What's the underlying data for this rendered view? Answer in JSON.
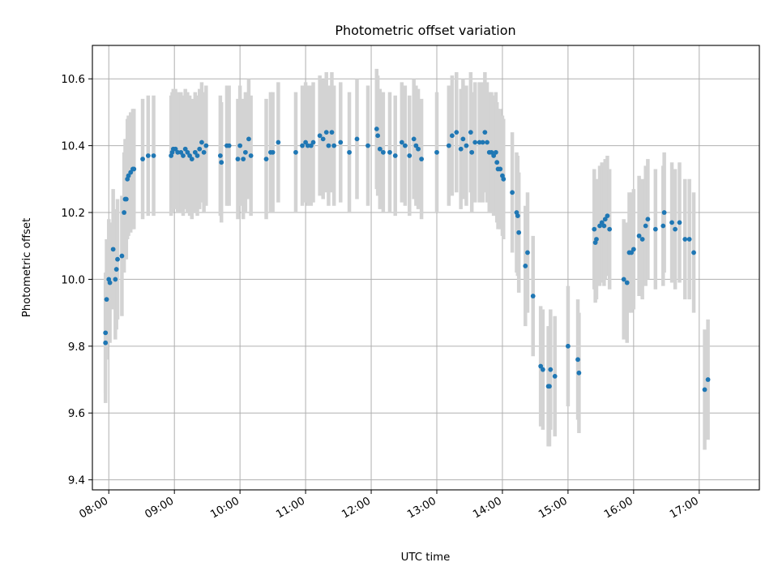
{
  "chart_data": {
    "type": "scatter",
    "title": "Photometric offset variation",
    "xlabel": "UTC time",
    "ylabel": "Photometric offset",
    "xlim": [
      "07:45",
      "17:55"
    ],
    "ylim": [
      9.37,
      10.7
    ],
    "xticks": [
      "08:00",
      "09:00",
      "10:00",
      "11:00",
      "12:00",
      "13:00",
      "14:00",
      "15:00",
      "16:00",
      "17:00"
    ],
    "yticks": [
      "9.4",
      "9.6",
      "9.8",
      "10.0",
      "10.2",
      "10.4",
      "10.6"
    ],
    "grid": true,
    "colors": {
      "point": "#1f77b4",
      "errorbar": "#d3d3d3",
      "grid": "#b0b0b0"
    },
    "series": [
      {
        "marker": "dot",
        "error_bar_half_width": 0.18,
        "points": [
          [
            "07:57",
            9.81
          ],
          [
            "07:57",
            9.84
          ],
          [
            "07:58",
            9.94
          ],
          [
            "08:00",
            10.0
          ],
          [
            "08:01",
            9.99
          ],
          [
            "08:04",
            10.09
          ],
          [
            "08:06",
            10.0
          ],
          [
            "08:07",
            10.03
          ],
          [
            "08:08",
            10.06
          ],
          [
            "08:12",
            10.07
          ],
          [
            "08:14",
            10.2
          ],
          [
            "08:15",
            10.24
          ],
          [
            "08:16",
            10.24
          ],
          [
            "08:17",
            10.3
          ],
          [
            "08:18",
            10.31
          ],
          [
            "08:20",
            10.32
          ],
          [
            "08:22",
            10.33
          ],
          [
            "08:23",
            10.33
          ],
          [
            "08:31",
            10.36
          ],
          [
            "08:36",
            10.37
          ],
          [
            "08:41",
            10.37
          ],
          [
            "08:57",
            10.37
          ],
          [
            "08:58",
            10.38
          ],
          [
            "08:59",
            10.39
          ],
          [
            "09:01",
            10.39
          ],
          [
            "09:03",
            10.38
          ],
          [
            "09:06",
            10.38
          ],
          [
            "09:08",
            10.37
          ],
          [
            "09:10",
            10.39
          ],
          [
            "09:12",
            10.38
          ],
          [
            "09:14",
            10.37
          ],
          [
            "09:16",
            10.36
          ],
          [
            "09:19",
            10.38
          ],
          [
            "09:21",
            10.37
          ],
          [
            "09:23",
            10.39
          ],
          [
            "09:25",
            10.41
          ],
          [
            "09:27",
            10.38
          ],
          [
            "09:29",
            10.4
          ],
          [
            "09:42",
            10.37
          ],
          [
            "09:43",
            10.35
          ],
          [
            "09:48",
            10.4
          ],
          [
            "09:50",
            10.4
          ],
          [
            "09:58",
            10.36
          ],
          [
            "10:00",
            10.4
          ],
          [
            "10:03",
            10.36
          ],
          [
            "10:05",
            10.38
          ],
          [
            "10:08",
            10.42
          ],
          [
            "10:10",
            10.37
          ],
          [
            "10:24",
            10.36
          ],
          [
            "10:28",
            10.38
          ],
          [
            "10:30",
            10.38
          ],
          [
            "10:35",
            10.41
          ],
          [
            "10:51",
            10.38
          ],
          [
            "10:57",
            10.4
          ],
          [
            "11:00",
            10.41
          ],
          [
            "11:02",
            10.4
          ],
          [
            "11:05",
            10.4
          ],
          [
            "11:07",
            10.41
          ],
          [
            "11:13",
            10.43
          ],
          [
            "11:16",
            10.42
          ],
          [
            "11:19",
            10.44
          ],
          [
            "11:21",
            10.4
          ],
          [
            "11:24",
            10.44
          ],
          [
            "11:26",
            10.4
          ],
          [
            "11:32",
            10.41
          ],
          [
            "11:40",
            10.38
          ],
          [
            "11:47",
            10.42
          ],
          [
            "11:57",
            10.4
          ],
          [
            "12:05",
            10.45
          ],
          [
            "12:06",
            10.43
          ],
          [
            "12:08",
            10.39
          ],
          [
            "12:11",
            10.38
          ],
          [
            "12:17",
            10.38
          ],
          [
            "12:22",
            10.37
          ],
          [
            "12:28",
            10.41
          ],
          [
            "12:31",
            10.4
          ],
          [
            "12:35",
            10.37
          ],
          [
            "12:39",
            10.42
          ],
          [
            "12:41",
            10.4
          ],
          [
            "12:43",
            10.39
          ],
          [
            "12:46",
            10.36
          ],
          [
            "13:00",
            10.38
          ],
          [
            "13:11",
            10.4
          ],
          [
            "13:14",
            10.43
          ],
          [
            "13:18",
            10.44
          ],
          [
            "13:22",
            10.39
          ],
          [
            "13:24",
            10.42
          ],
          [
            "13:27",
            10.4
          ],
          [
            "13:31",
            10.44
          ],
          [
            "13:32",
            10.38
          ],
          [
            "13:35",
            10.41
          ],
          [
            "13:39",
            10.41
          ],
          [
            "13:42",
            10.41
          ],
          [
            "13:44",
            10.44
          ],
          [
            "13:46",
            10.41
          ],
          [
            "13:48",
            10.38
          ],
          [
            "13:50",
            10.38
          ],
          [
            "13:52",
            10.37
          ],
          [
            "13:54",
            10.38
          ],
          [
            "13:55",
            10.35
          ],
          [
            "13:56",
            10.33
          ],
          [
            "13:58",
            10.33
          ],
          [
            "14:00",
            10.31
          ],
          [
            "14:01",
            10.3
          ],
          [
            "14:09",
            10.26
          ],
          [
            "14:13",
            10.2
          ],
          [
            "14:14",
            10.19
          ],
          [
            "14:15",
            10.14
          ],
          [
            "14:21",
            10.04
          ],
          [
            "14:23",
            10.08
          ],
          [
            "14:28",
            9.95
          ],
          [
            "14:35",
            9.74
          ],
          [
            "14:37",
            9.73
          ],
          [
            "14:42",
            9.68
          ],
          [
            "14:43",
            9.68
          ],
          [
            "14:44",
            9.73
          ],
          [
            "14:48",
            9.71
          ],
          [
            "15:00",
            9.8
          ],
          [
            "15:09",
            9.76
          ],
          [
            "15:10",
            9.72
          ],
          [
            "15:24",
            10.15
          ],
          [
            "15:25",
            10.11
          ],
          [
            "15:26",
            10.12
          ],
          [
            "15:29",
            10.16
          ],
          [
            "15:31",
            10.17
          ],
          [
            "15:33",
            10.16
          ],
          [
            "15:34",
            10.18
          ],
          [
            "15:36",
            10.19
          ],
          [
            "15:38",
            10.15
          ],
          [
            "15:51",
            10.0
          ],
          [
            "15:54",
            9.99
          ],
          [
            "15:56",
            10.08
          ],
          [
            "15:58",
            10.08
          ],
          [
            "16:00",
            10.09
          ],
          [
            "16:05",
            10.13
          ],
          [
            "16:08",
            10.12
          ],
          [
            "16:11",
            10.16
          ],
          [
            "16:13",
            10.18
          ],
          [
            "16:20",
            10.15
          ],
          [
            "16:27",
            10.16
          ],
          [
            "16:28",
            10.2
          ],
          [
            "16:35",
            10.17
          ],
          [
            "16:38",
            10.15
          ],
          [
            "16:42",
            10.17
          ],
          [
            "16:47",
            10.12
          ],
          [
            "16:51",
            10.12
          ],
          [
            "16:55",
            10.08
          ],
          [
            "17:05",
            9.67
          ],
          [
            "17:08",
            9.7
          ]
        ]
      }
    ]
  }
}
